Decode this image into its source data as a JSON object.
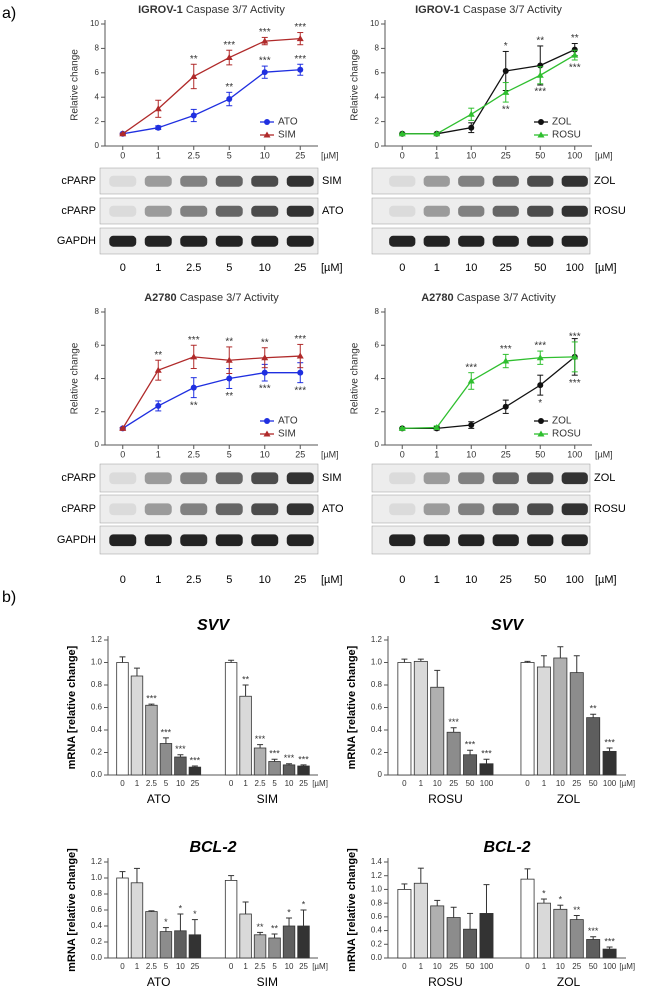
{
  "panels": [
    "a)",
    "b)"
  ],
  "chart_data": [
    {
      "type": "line",
      "title_cell_line": "IGROV-1",
      "title": "Caspase 3/7 Activity",
      "ylabel": "Relative change",
      "x_unit": "[µM]",
      "categories": [
        "0",
        "1",
        "2.5",
        "5",
        "10",
        "25"
      ],
      "ylim": [
        0,
        10
      ],
      "yticks": [
        0,
        2,
        4,
        6,
        8,
        10
      ],
      "legend": "lower right",
      "series": [
        {
          "name": "ATO",
          "color": "#1f2fe0",
          "marker": "circle",
          "sig_position": "above",
          "values": [
            1,
            1.5,
            2.5,
            3.85,
            6.05,
            6.25
          ],
          "errors": [
            0.05,
            0.15,
            0.5,
            0.55,
            0.5,
            0.45
          ],
          "significance": [
            null,
            null,
            null,
            "**",
            "***",
            "***"
          ]
        },
        {
          "name": "SIM",
          "color": "#b02a2a",
          "marker": "triangle",
          "sig_position": "above",
          "values": [
            1,
            3.05,
            5.7,
            7.25,
            8.6,
            8.8
          ],
          "errors": [
            0.05,
            0.7,
            1,
            0.6,
            0.3,
            0.5
          ],
          "significance": [
            null,
            null,
            "**",
            "***",
            "***",
            "***"
          ]
        }
      ],
      "blot": {
        "left_labels": [
          "cPARP",
          "cPARP",
          "GAPDH"
        ],
        "right_labels": [
          "SIM",
          "ATO",
          null
        ]
      }
    },
    {
      "type": "line",
      "title_cell_line": "IGROV-1",
      "title": "Caspase 3/7 Activity",
      "ylabel": "Relative change",
      "x_unit": "[µM]",
      "categories": [
        "0",
        "1",
        "10",
        "25",
        "50",
        "100"
      ],
      "ylim": [
        0,
        10
      ],
      "yticks": [
        0,
        2,
        4,
        6,
        8,
        10
      ],
      "legend": "lower right",
      "series": [
        {
          "name": "ZOL",
          "color": "#111111",
          "marker": "circle",
          "sig_position": "above",
          "values": [
            1,
            1,
            1.5,
            6.15,
            6.6,
            7.9
          ],
          "errors": [
            0.05,
            0.05,
            0.4,
            1.6,
            1.6,
            0.5
          ],
          "significance": [
            null,
            null,
            null,
            "*",
            "**",
            "**"
          ]
        },
        {
          "name": "ROSU",
          "color": "#2fbf2f",
          "marker": "triangle",
          "sig_position": "below",
          "values": [
            1,
            1,
            2.6,
            4.4,
            5.8,
            7.45
          ],
          "errors": [
            0.05,
            0.05,
            0.5,
            0.8,
            0.7,
            0.4
          ],
          "significance": [
            null,
            null,
            null,
            "**",
            "***",
            "***"
          ]
        }
      ],
      "blot": {
        "left_labels": [
          null,
          null,
          null
        ],
        "right_labels": [
          "ZOL",
          "ROSU",
          null
        ]
      }
    },
    {
      "type": "line",
      "title_cell_line": "A2780",
      "title": "Caspase 3/7 Activity",
      "ylabel": "Relative change",
      "x_unit": "[µM]",
      "categories": [
        "0",
        "1",
        "2.5",
        "5",
        "10",
        "25"
      ],
      "ylim": [
        0,
        8
      ],
      "yticks": [
        0,
        2,
        4,
        6,
        8
      ],
      "legend": "lower right",
      "series": [
        {
          "name": "ATO",
          "color": "#1f2fe0",
          "marker": "circle",
          "sig_position": "below",
          "values": [
            1,
            2.35,
            3.45,
            4,
            4.35,
            4.35
          ],
          "errors": [
            0.05,
            0.3,
            0.6,
            0.6,
            0.5,
            0.6
          ],
          "significance": [
            null,
            null,
            "**",
            "**",
            "***",
            "***"
          ]
        },
        {
          "name": "SIM",
          "color": "#b02a2a",
          "marker": "triangle",
          "sig_position": "above",
          "values": [
            1,
            4.5,
            5.3,
            5.1,
            5.25,
            5.35
          ],
          "errors": [
            0.05,
            0.6,
            0.7,
            0.8,
            0.6,
            0.7
          ],
          "significance": [
            null,
            "**",
            "***",
            "**",
            "**",
            "***"
          ]
        }
      ],
      "blot": {
        "left_labels": [
          "cPARP",
          "cPARP",
          "GAPDH"
        ],
        "right_labels": [
          "SIM",
          "ATO",
          null
        ]
      }
    },
    {
      "type": "line",
      "title_cell_line": "A2780",
      "title": "Caspase 3/7 Activity",
      "ylabel": "Relative change",
      "x_unit": "[µM]",
      "categories": [
        "0",
        "1",
        "10",
        "25",
        "50",
        "100"
      ],
      "ylim": [
        0,
        8
      ],
      "yticks": [
        0,
        2,
        4,
        6,
        8
      ],
      "legend": "lower right",
      "series": [
        {
          "name": "ZOL",
          "color": "#111111",
          "marker": "circle",
          "sig_position": "below",
          "values": [
            1,
            1,
            1.2,
            2.3,
            3.6,
            5.3
          ],
          "errors": [
            0.05,
            0.1,
            0.2,
            0.4,
            0.6,
            1.1
          ],
          "significance": [
            null,
            null,
            null,
            null,
            "*",
            "***"
          ]
        },
        {
          "name": "ROSU",
          "color": "#2fbf2f",
          "marker": "triangle",
          "sig_position": "above",
          "values": [
            1,
            1.05,
            3.85,
            5.05,
            5.25,
            5.3
          ],
          "errors": [
            0.05,
            0.1,
            0.5,
            0.4,
            0.4,
            0.9
          ],
          "significance": [
            null,
            null,
            "***",
            "***",
            "***",
            "***"
          ]
        }
      ],
      "blot": {
        "left_labels": [
          null,
          null,
          null
        ],
        "right_labels": [
          "ZOL",
          "ROSU",
          null
        ]
      }
    },
    {
      "type": "bar",
      "title": "SVV",
      "ylabel": "mRNA [relative change]",
      "x_unit": "[µM]",
      "categories": [
        "0",
        "1",
        "2.5",
        "5",
        "10",
        "25"
      ],
      "colors": [
        "#ffffff",
        "#d9d9d9",
        "#b0b0b0",
        "#8c8c8c",
        "#5e5e5e",
        "#333333"
      ],
      "ylim": [
        0,
        1.2
      ],
      "yticks": [
        {
          "value": 0,
          "label": "0.0"
        },
        0.2,
        0.4,
        0.6,
        0.8,
        {
          "value": 1,
          "label": "1.0"
        },
        1.2
      ],
      "groups": [
        {
          "name": "ATO",
          "values": [
            1,
            0.88,
            0.62,
            0.28,
            0.16,
            0.07
          ],
          "errors": [
            0.05,
            0.07,
            0.01,
            0.05,
            0.02,
            0.01
          ],
          "significance": [
            null,
            null,
            "***",
            "***",
            "***",
            "***"
          ]
        },
        {
          "name": "SIM",
          "values": [
            1,
            0.7,
            0.24,
            0.12,
            0.09,
            0.08
          ],
          "errors": [
            0.02,
            0.1,
            0.03,
            0.02,
            0.01,
            0.01
          ],
          "significance": [
            null,
            "**",
            "***",
            "***",
            "***",
            "***"
          ]
        }
      ]
    },
    {
      "type": "bar",
      "title": "SVV",
      "ylabel": "mRNA [relative change]",
      "x_unit": "[µM]",
      "categories": [
        "0",
        "1",
        "10",
        "25",
        "50",
        "100"
      ],
      "colors": [
        "#ffffff",
        "#d9d9d9",
        "#b0b0b0",
        "#8c8c8c",
        "#5e5e5e",
        "#333333"
      ],
      "ylim": [
        0,
        1.2
      ],
      "yticks": [
        0,
        0.2,
        0.4,
        0.6,
        0.8,
        {
          "value": 1,
          "label": "1.0"
        },
        1.2
      ],
      "groups": [
        {
          "name": "ROSU",
          "values": [
            1,
            1.01,
            0.78,
            0.38,
            0.18,
            0.1
          ],
          "errors": [
            0.03,
            0.02,
            0.15,
            0.04,
            0.04,
            0.04
          ],
          "significance": [
            null,
            null,
            null,
            "***",
            "***",
            "***"
          ]
        },
        {
          "name": "ZOL",
          "values": [
            1,
            0.96,
            1.04,
            0.91,
            0.51,
            0.21
          ],
          "errors": [
            0.01,
            0.1,
            0.1,
            0.15,
            0.03,
            0.03
          ],
          "significance": [
            null,
            null,
            null,
            null,
            "**",
            "***"
          ]
        }
      ]
    },
    {
      "type": "bar",
      "title": "BCL-2",
      "ylabel": "mRNA [relative change]",
      "x_unit": "[µM]",
      "categories": [
        "0",
        "1",
        "2.5",
        "5",
        "10",
        "25"
      ],
      "colors": [
        "#ffffff",
        "#d9d9d9",
        "#b0b0b0",
        "#8c8c8c",
        "#5e5e5e",
        "#333333"
      ],
      "ylim": [
        0,
        1.2
      ],
      "yticks": [
        {
          "value": 0,
          "label": "0.0"
        },
        0.2,
        0.4,
        0.6,
        0.8,
        {
          "value": 1,
          "label": "1.0"
        },
        1.2
      ],
      "groups": [
        {
          "name": "ATO",
          "values": [
            1,
            0.94,
            0.58,
            0.33,
            0.34,
            0.29
          ],
          "errors": [
            0.08,
            0.18,
            0.01,
            0.05,
            0.21,
            0.19
          ],
          "significance": [
            null,
            null,
            null,
            "*",
            "*",
            "*"
          ]
        },
        {
          "name": "SIM",
          "values": [
            0.97,
            0.55,
            0.29,
            0.25,
            0.4,
            0.4
          ],
          "errors": [
            0.06,
            0.15,
            0.03,
            0.05,
            0.1,
            0.2
          ],
          "significance": [
            null,
            null,
            "**",
            "**",
            "*",
            "*"
          ]
        }
      ]
    },
    {
      "type": "bar",
      "title": "BCL-2",
      "ylabel": "mRNA [relative change]",
      "x_unit": "[µM]",
      "categories": [
        "0",
        "1",
        "10",
        "25",
        "50",
        "100"
      ],
      "colors": [
        "#ffffff",
        "#d9d9d9",
        "#b0b0b0",
        "#8c8c8c",
        "#5e5e5e",
        "#333333"
      ],
      "ylim": [
        0,
        1.4
      ],
      "yticks": [
        {
          "value": 0,
          "label": "0.0"
        },
        0.2,
        0.4,
        0.6,
        0.8,
        {
          "value": 1,
          "label": "1.0"
        },
        1.2,
        1.4
      ],
      "groups": [
        {
          "name": "ROSU",
          "values": [
            1,
            1.09,
            0.76,
            0.59,
            0.42,
            0.65
          ],
          "errors": [
            0.08,
            0.22,
            0.08,
            0.15,
            0.23,
            0.42
          ],
          "significance": [
            null,
            null,
            null,
            null,
            null,
            null
          ]
        },
        {
          "name": "ZOL",
          "values": [
            1.15,
            0.8,
            0.71,
            0.56,
            0.27,
            0.13
          ],
          "errors": [
            0.15,
            0.06,
            0.06,
            0.06,
            0.04,
            0.03
          ],
          "significance": [
            null,
            "*",
            "*",
            "**",
            "***",
            "***"
          ]
        }
      ]
    }
  ]
}
